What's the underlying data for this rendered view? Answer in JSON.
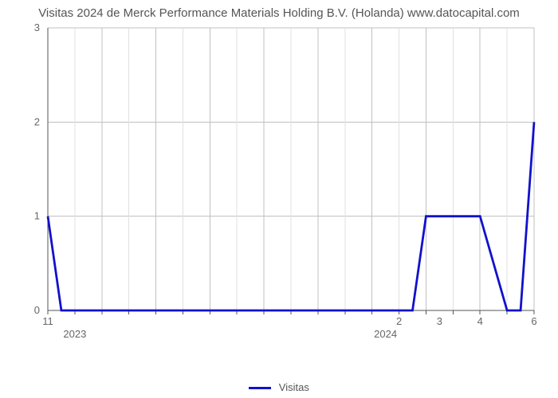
{
  "chart": {
    "type": "line",
    "title": "Visitas 2024 de Merck Performance Materials Holding B.V. (Holanda) www.datocapital.com",
    "title_fontsize": 15,
    "title_color": "#555555",
    "background_color": "#ffffff",
    "series": {
      "name": "Visitas",
      "color": "#1111cc",
      "line_width": 2.8,
      "points": [
        {
          "x": 0,
          "y": 1
        },
        {
          "x": 0.5,
          "y": 0
        },
        {
          "x": 13.5,
          "y": 0
        },
        {
          "x": 14,
          "y": 1
        },
        {
          "x": 16,
          "y": 1
        },
        {
          "x": 17,
          "y": 0
        },
        {
          "x": 17.5,
          "y": 0
        },
        {
          "x": 18,
          "y": 2
        }
      ]
    },
    "x_axis": {
      "min": 0,
      "max": 18,
      "major_grid_at": [
        0,
        2,
        4,
        6,
        8,
        10,
        12,
        14,
        16,
        18
      ],
      "minor_grid_at": [
        1,
        3,
        5,
        7,
        9,
        11,
        13,
        15,
        17
      ],
      "tick_labels": [
        {
          "at": 0,
          "text": "11"
        },
        {
          "at": 13,
          "text": "2"
        },
        {
          "at": 14.5,
          "text": "3"
        },
        {
          "at": 16,
          "text": "4"
        },
        {
          "at": 18,
          "text": "6"
        }
      ],
      "era_labels": [
        {
          "at": 1,
          "text": "2023"
        },
        {
          "at": 12.5,
          "text": "2024"
        }
      ]
    },
    "y_axis": {
      "min": 0,
      "max": 3,
      "major_ticks": [
        0,
        1,
        2,
        3
      ],
      "tick_fontsize": 13,
      "tick_color": "#666666"
    },
    "grid": {
      "major_color": "#c0c0c0",
      "minor_color": "#e0e0e0"
    },
    "axis_color": "#555555",
    "legend": {
      "label": "Visitas",
      "swatch_color": "#1111cc"
    }
  }
}
